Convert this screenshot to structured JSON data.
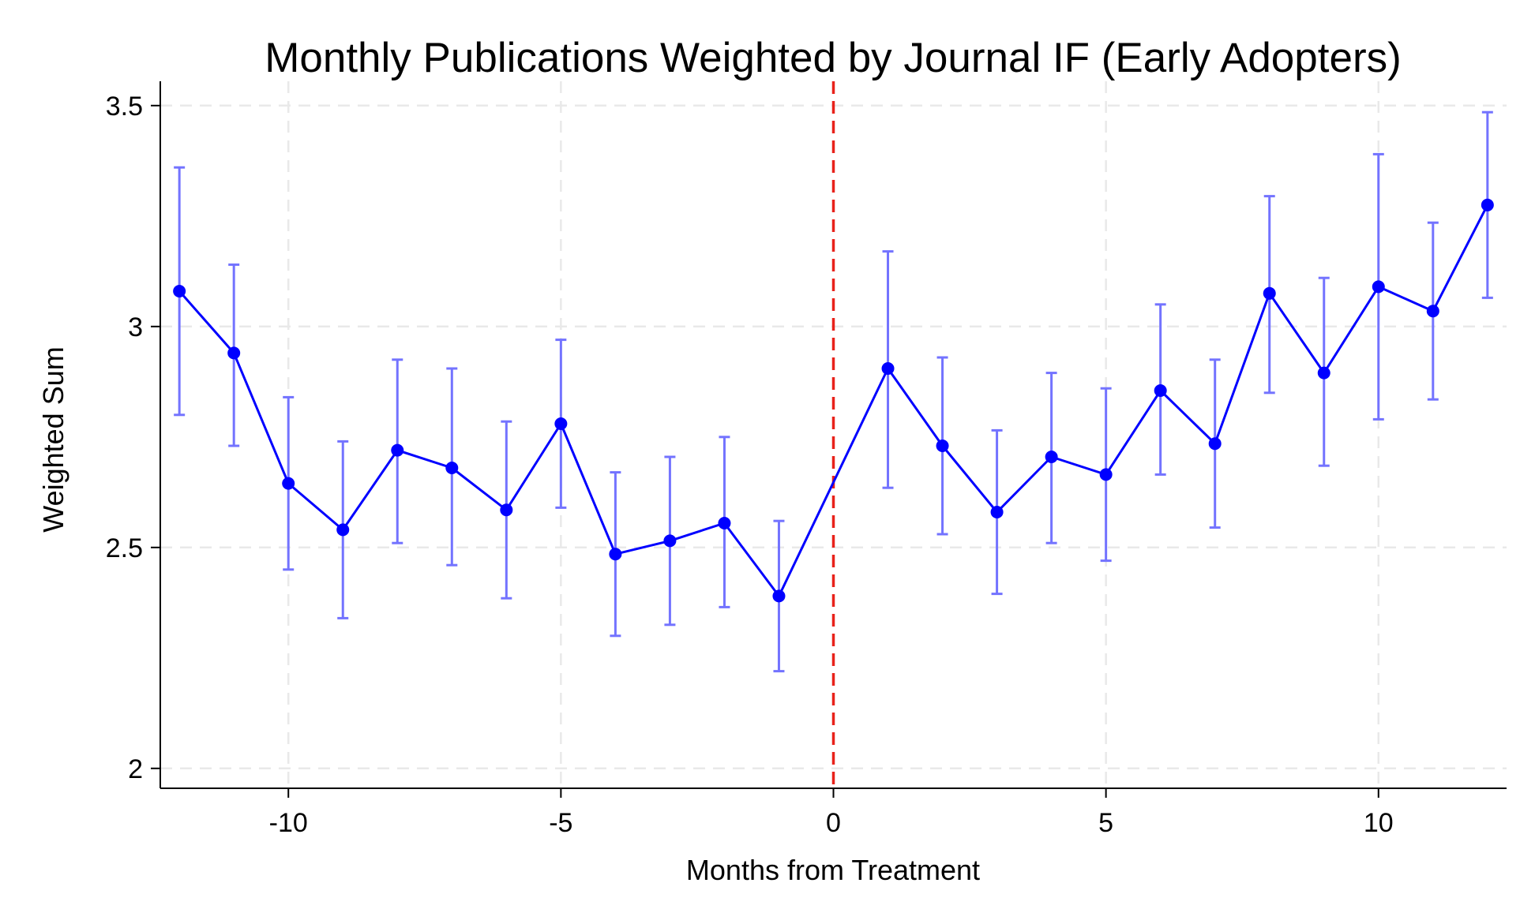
{
  "chart_data": {
    "type": "line",
    "title": "Monthly Publications Weighted by Journal IF (Early Adopters)",
    "xlabel": "Months from Treatment",
    "ylabel": "Weighted Sum",
    "xlim": [
      -12.35,
      12.35
    ],
    "ylim": [
      1.955,
      3.555
    ],
    "x_ticks": [
      -10,
      -5,
      0,
      5,
      10
    ],
    "x_tick_labels": [
      "-10",
      "-5",
      "0",
      "5",
      "10"
    ],
    "y_ticks": [
      2,
      2.5,
      3,
      3.5
    ],
    "y_tick_labels": [
      "2",
      "2.5",
      "3",
      "3.5"
    ],
    "grid": true,
    "treatment_line": {
      "x": 0,
      "color": "#e8221b",
      "style": "dashed"
    },
    "series": [
      {
        "color": "#0000ff",
        "errorbar_color": "#7373ff",
        "points": [
          {
            "x": -12,
            "y": 3.08,
            "lo": 2.8,
            "hi": 3.36
          },
          {
            "x": -11,
            "y": 2.94,
            "lo": 2.73,
            "hi": 3.14
          },
          {
            "x": -10,
            "y": 2.645,
            "lo": 2.45,
            "hi": 2.84
          },
          {
            "x": -9,
            "y": 2.54,
            "lo": 2.34,
            "hi": 2.74
          },
          {
            "x": -8,
            "y": 2.72,
            "lo": 2.51,
            "hi": 2.925
          },
          {
            "x": -7,
            "y": 2.68,
            "lo": 2.46,
            "hi": 2.905
          },
          {
            "x": -6,
            "y": 2.585,
            "lo": 2.385,
            "hi": 2.785
          },
          {
            "x": -5,
            "y": 2.78,
            "lo": 2.59,
            "hi": 2.97
          },
          {
            "x": -4,
            "y": 2.485,
            "lo": 2.3,
            "hi": 2.67
          },
          {
            "x": -3,
            "y": 2.515,
            "lo": 2.325,
            "hi": 2.705
          },
          {
            "x": -2,
            "y": 2.555,
            "lo": 2.365,
            "hi": 2.75
          },
          {
            "x": -1,
            "y": 2.39,
            "lo": 2.22,
            "hi": 2.56
          },
          {
            "x": 1,
            "y": 2.905,
            "lo": 2.635,
            "hi": 3.17
          },
          {
            "x": 2,
            "y": 2.73,
            "lo": 2.53,
            "hi": 2.93
          },
          {
            "x": 3,
            "y": 2.58,
            "lo": 2.395,
            "hi": 2.765
          },
          {
            "x": 4,
            "y": 2.705,
            "lo": 2.51,
            "hi": 2.895
          },
          {
            "x": 5,
            "y": 2.665,
            "lo": 2.47,
            "hi": 2.86
          },
          {
            "x": 6,
            "y": 2.855,
            "lo": 2.665,
            "hi": 3.05
          },
          {
            "x": 7,
            "y": 2.735,
            "lo": 2.545,
            "hi": 2.925
          },
          {
            "x": 8,
            "y": 3.075,
            "lo": 2.85,
            "hi": 3.295
          },
          {
            "x": 9,
            "y": 2.895,
            "lo": 2.685,
            "hi": 3.11
          },
          {
            "x": 10,
            "y": 3.09,
            "lo": 2.79,
            "hi": 3.39
          },
          {
            "x": 11,
            "y": 3.035,
            "lo": 2.835,
            "hi": 3.235
          },
          {
            "x": 12,
            "y": 3.275,
            "lo": 3.065,
            "hi": 3.485
          }
        ]
      }
    ]
  }
}
